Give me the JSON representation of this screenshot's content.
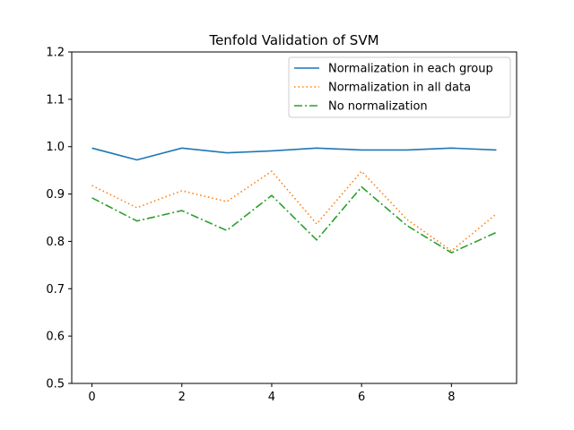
{
  "chart_data": {
    "type": "line",
    "title": "Tenfold Validation of SVM",
    "xlabel": "",
    "ylabel": "",
    "x": [
      0,
      1,
      2,
      3,
      4,
      5,
      6,
      7,
      8,
      9
    ],
    "xlim": [
      -0.45,
      9.45
    ],
    "ylim": [
      0.5,
      1.2
    ],
    "xticks": [
      0,
      2,
      4,
      6,
      8
    ],
    "yticks": [
      0.5,
      0.6,
      0.7,
      0.8,
      0.9,
      1.0,
      1.1,
      1.2
    ],
    "ytick_labels": [
      "0.5",
      "0.6",
      "0.7",
      "0.8",
      "0.9",
      "1.0",
      "1.1",
      "1.2"
    ],
    "grid": false,
    "legend_position": "top-right",
    "series": [
      {
        "name": "Normalization in each group",
        "color": "#1f77b4",
        "style": "solid",
        "values": [
          0.997,
          0.972,
          0.997,
          0.987,
          0.991,
          0.997,
          0.993,
          0.993,
          0.997,
          0.993
        ]
      },
      {
        "name": "Normalization in all data",
        "color": "#ff7f0e",
        "style": "dotted",
        "values": [
          0.918,
          0.871,
          0.907,
          0.884,
          0.948,
          0.837,
          0.948,
          0.847,
          0.78,
          0.858
        ]
      },
      {
        "name": "No normalization",
        "color": "#2ca02c",
        "style": "dashdot",
        "values": [
          0.892,
          0.843,
          0.865,
          0.823,
          0.897,
          0.803,
          0.915,
          0.834,
          0.776,
          0.819
        ]
      }
    ]
  }
}
